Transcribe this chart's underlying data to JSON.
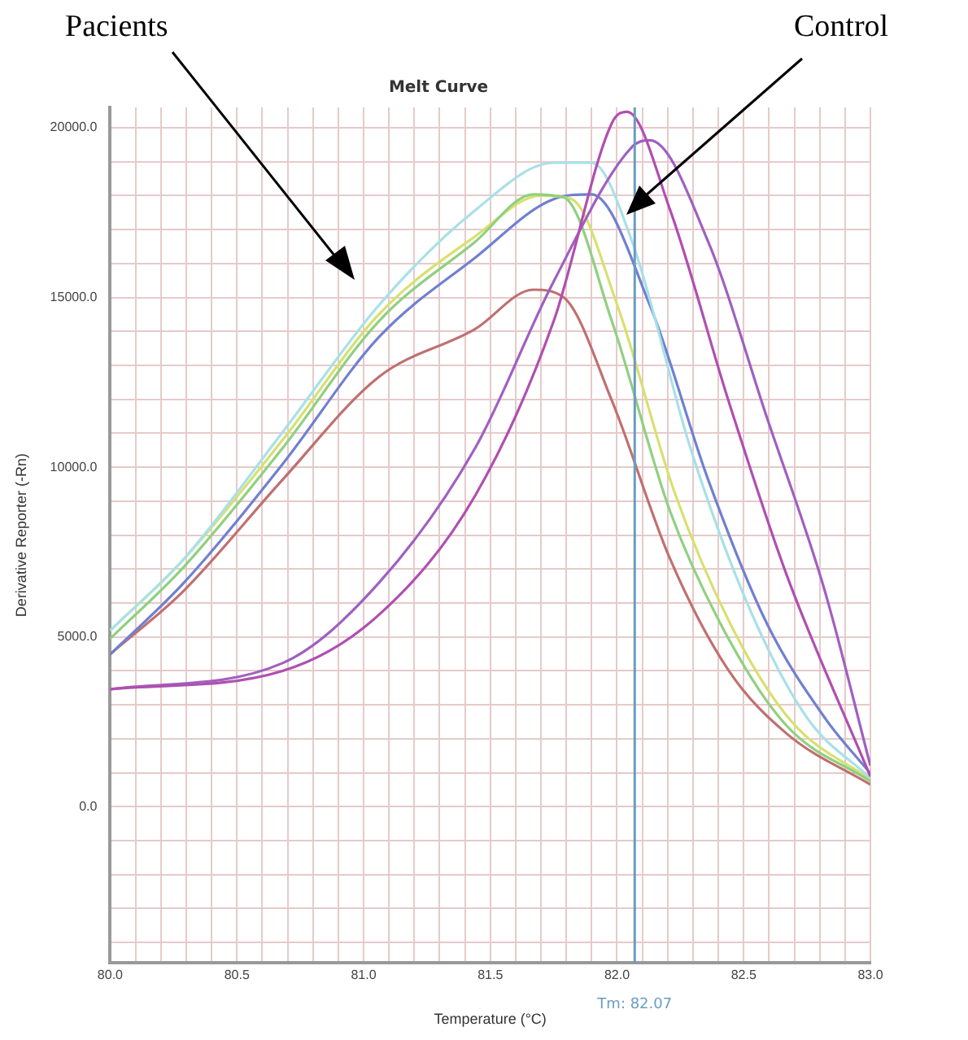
{
  "chart_data": {
    "type": "line",
    "title": "Melt Curve",
    "xlabel": "Temperature (°C)",
    "ylabel": "Derivative Reporter (-Rn)",
    "annotations": [
      "Pacients",
      "Control"
    ],
    "grid": true,
    "legend": false,
    "marker": "none",
    "line_style": "solid",
    "xlim": [
      80,
      83
    ],
    "ylim": [
      -4600,
      20600
    ],
    "xticks": [
      {
        "value": 80,
        "label": "80.0"
      },
      {
        "value": 80.1,
        "label": null
      },
      {
        "value": 80.2,
        "label": null
      },
      {
        "value": 80.3,
        "label": null
      },
      {
        "value": 80.4,
        "label": null
      },
      {
        "value": 80.5,
        "label": "80.5"
      },
      {
        "value": 80.6,
        "label": null
      },
      {
        "value": 80.7,
        "label": null
      },
      {
        "value": 80.8,
        "label": null
      },
      {
        "value": 80.9,
        "label": null
      },
      {
        "value": 81,
        "label": "81.0"
      },
      {
        "value": 81.1,
        "label": null
      },
      {
        "value": 81.2,
        "label": null
      },
      {
        "value": 81.3,
        "label": null
      },
      {
        "value": 81.4,
        "label": null
      },
      {
        "value": 81.5,
        "label": "81.5"
      },
      {
        "value": 81.6,
        "label": null
      },
      {
        "value": 81.7,
        "label": null
      },
      {
        "value": 81.8,
        "label": null
      },
      {
        "value": 81.9,
        "label": null
      },
      {
        "value": 82,
        "label": "82.0"
      },
      {
        "value": 82.1,
        "label": null
      },
      {
        "value": 82.2,
        "label": null
      },
      {
        "value": 82.3,
        "label": null
      },
      {
        "value": 82.4,
        "label": null
      },
      {
        "value": 82.5,
        "label": "82.5"
      },
      {
        "value": 82.6,
        "label": null
      },
      {
        "value": 82.7,
        "label": null
      },
      {
        "value": 82.8,
        "label": null
      },
      {
        "value": 82.9,
        "label": null
      },
      {
        "value": 83,
        "label": "83.0"
      }
    ],
    "yticks": [
      {
        "value": -4000,
        "label": null
      },
      {
        "value": -3000,
        "label": null
      },
      {
        "value": -2000,
        "label": null
      },
      {
        "value": -1000,
        "label": null
      },
      {
        "value": 0,
        "label": "0.0"
      },
      {
        "value": 1000,
        "label": null
      },
      {
        "value": 2000,
        "label": null
      },
      {
        "value": 3000,
        "label": null
      },
      {
        "value": 4000,
        "label": null
      },
      {
        "value": 5000,
        "label": "5000.0"
      },
      {
        "value": 6000,
        "label": null
      },
      {
        "value": 7000,
        "label": null
      },
      {
        "value": 8000,
        "label": null
      },
      {
        "value": 9000,
        "label": null
      },
      {
        "value": 10000,
        "label": "10000.0"
      },
      {
        "value": 11000,
        "label": null
      },
      {
        "value": 12000,
        "label": null
      },
      {
        "value": 13000,
        "label": null
      },
      {
        "value": 14000,
        "label": null
      },
      {
        "value": 15000,
        "label": "15000.0"
      },
      {
        "value": 16000,
        "label": null
      },
      {
        "value": 17000,
        "label": null
      },
      {
        "value": 18000,
        "label": null
      },
      {
        "value": 19000,
        "label": null
      },
      {
        "value": 20000,
        "label": "20000.0"
      }
    ],
    "ref_lines": [
      {
        "axis": "x",
        "value": 82.07,
        "label": "Tm: 82.07",
        "color": "#6a9cc0"
      }
    ],
    "series": [
      {
        "color": "#b04fb0",
        "x": [
          80,
          80.68,
          81.06,
          81.44,
          81.75,
          81.98,
          82.04,
          82.21,
          82.44,
          82.67,
          83
        ],
        "values": [
          3460,
          4000,
          5650,
          9160,
          14300,
          20140,
          20470,
          17570,
          11960,
          6820,
          890
        ]
      },
      {
        "color": "#a060c0",
        "x": [
          80,
          80.68,
          81.06,
          81.44,
          81.75,
          82.06,
          82.13,
          82.36,
          82.59,
          82.82,
          83
        ],
        "values": [
          3460,
          4230,
          6590,
          10560,
          15470,
          19440,
          19630,
          16640,
          11500,
          6360,
          1210
        ]
      },
      {
        "color": "#a8e0e8",
        "x": [
          80,
          80.29,
          80.68,
          81.06,
          81.44,
          81.75,
          81.9,
          82.06,
          82.29,
          82.52,
          82.75,
          83
        ],
        "values": [
          5190,
          7290,
          11030,
          14770,
          17570,
          18970,
          18970,
          16640,
          10560,
          5890,
          2620,
          840
        ]
      },
      {
        "color": "#90d080",
        "x": [
          80,
          80.29,
          80.68,
          81.06,
          81.44,
          81.67,
          81.79,
          81.98,
          82.21,
          82.44,
          82.67,
          83
        ],
        "values": [
          4950,
          7060,
          10560,
          14300,
          16640,
          18040,
          17950,
          14300,
          8690,
          4950,
          2380,
          750
        ]
      },
      {
        "color": "#d8e070",
        "x": [
          80,
          80.29,
          80.68,
          81.06,
          81.44,
          81.7,
          81.82,
          82.0,
          82.23,
          82.46,
          82.69,
          83
        ],
        "values": [
          5190,
          7290,
          10800,
          14500,
          16800,
          18000,
          17900,
          14800,
          9200,
          5200,
          2500,
          800
        ]
      },
      {
        "color": "#7080d0",
        "x": [
          80,
          80.29,
          80.68,
          81.06,
          81.44,
          81.75,
          81.9,
          82.13,
          82.36,
          82.59,
          82.82,
          83
        ],
        "values": [
          4490,
          6590,
          10090,
          13830,
          16170,
          17900,
          18040,
          14770,
          9630,
          5420,
          2620,
          980
        ]
      },
      {
        "color": "#c07070",
        "x": [
          80,
          80.29,
          80.68,
          81.06,
          81.44,
          81.67,
          81.79,
          81.98,
          82.21,
          82.44,
          82.67,
          83
        ],
        "values": [
          4490,
          6360,
          9630,
          12660,
          14070,
          15230,
          15000,
          11960,
          7290,
          4020,
          2150,
          650
        ]
      }
    ]
  }
}
